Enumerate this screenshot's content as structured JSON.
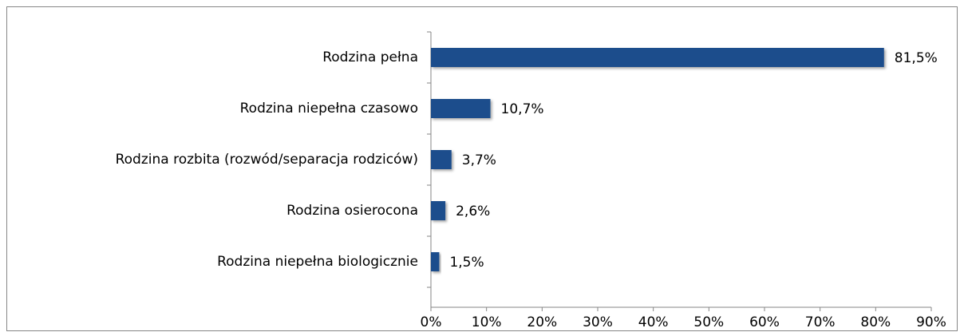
{
  "chart_data": {
    "type": "bar",
    "orientation": "horizontal",
    "categories": [
      "Rodzina pełna",
      "Rodzina niepełna czasowo",
      "Rodzina rozbita (rozwód/separacja rodziców)",
      "Rodzina osierocona",
      "Rodzina niepełna biologicznie"
    ],
    "values": [
      81.5,
      10.7,
      3.7,
      2.6,
      1.5
    ],
    "value_labels": [
      "81,5%",
      "10,7%",
      "3,7%",
      "2,6%",
      "1,5%"
    ],
    "color": "#1f4e8c",
    "xlim": [
      0,
      90
    ],
    "xticks": [
      {
        "value": 0,
        "label": "0%"
      },
      {
        "value": 10,
        "label": "10%"
      },
      {
        "value": 20,
        "label": "20%"
      },
      {
        "value": 30,
        "label": "30%"
      },
      {
        "value": 40,
        "label": "40%"
      },
      {
        "value": 50,
        "label": "50%"
      },
      {
        "value": 60,
        "label": "60%"
      },
      {
        "value": 70,
        "label": "70%"
      },
      {
        "value": 80,
        "label": "80%"
      },
      {
        "value": 90,
        "label": "90%"
      }
    ],
    "grid": false
  }
}
